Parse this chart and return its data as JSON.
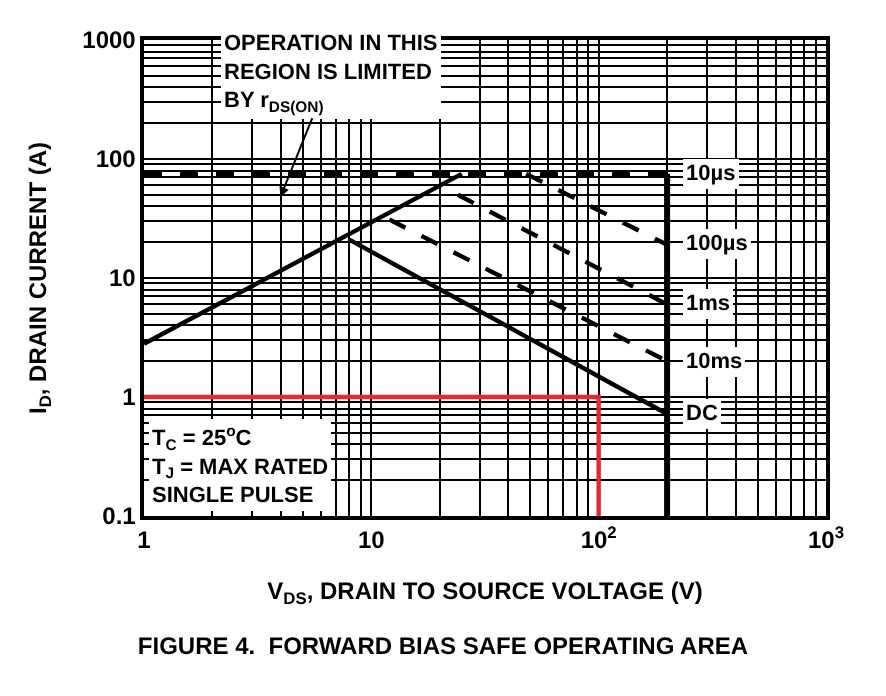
{
  "chart_data": {
    "type": "line",
    "title": "FIGURE 4.  FORWARD BIAS SAFE OPERATING AREA",
    "xlabel": "V$_{DS}$, DRAIN TO SOURCE VOLTAGE (V)",
    "ylabel": "I$_{D}$, DRAIN CURRENT (A)",
    "log": "xy",
    "grid": true,
    "marker": "none",
    "xlim": [
      1,
      1000
    ],
    "ylim": [
      0.1,
      1000
    ],
    "xticks": [
      1,
      10,
      {
        "value": 100,
        "label": "10$^{2}$"
      },
      {
        "value": 1000,
        "label": "10$^{3}$"
      }
    ],
    "yticks": [
      0.1,
      1,
      10,
      100,
      1000
    ],
    "series": [
      {
        "color": "#000000",
        "line_style": "solid",
        "x": [
          1,
          25
        ],
        "values": [
          2.8,
          75
        ]
      },
      {
        "name": "10µs",
        "color": "#000000",
        "line_style": "dashed",
        "x": [
          1,
          200
        ],
        "values": [
          75,
          75
        ]
      },
      {
        "name": "100µs",
        "color": "#000000",
        "line_style": "dashed",
        "x": [
          48,
          200
        ],
        "values": [
          75,
          19
        ]
      },
      {
        "name": "1ms",
        "color": "#000000",
        "line_style": "dashed",
        "x": [
          24,
          200
        ],
        "values": [
          50,
          6
        ]
      },
      {
        "name": "10ms",
        "color": "#000000",
        "line_style": "dashed",
        "x": [
          12,
          200
        ],
        "values": [
          31,
          2
        ]
      },
      {
        "name": "DC",
        "color": "#000000",
        "line_style": "solid",
        "x": [
          8,
          200
        ],
        "values": [
          21,
          0.72
        ]
      },
      {
        "color": "#000000",
        "line_style": "solid",
        "x": [
          200,
          200
        ],
        "values": [
          0.1,
          75
        ]
      },
      {
        "color": "#e8262b",
        "line_style": "solid",
        "x": [
          1,
          100,
          100
        ],
        "values": [
          1,
          1,
          0.1
        ]
      }
    ],
    "annotations": [
      "OPERATION IN THIS\nREGION IS LIMITED\nBY r$_{DS(ON)}$",
      "T$_{C}$ = 25$^{o}$C\nT$_{J}$ = MAX RATED\nSINGLE PULSE"
    ]
  }
}
